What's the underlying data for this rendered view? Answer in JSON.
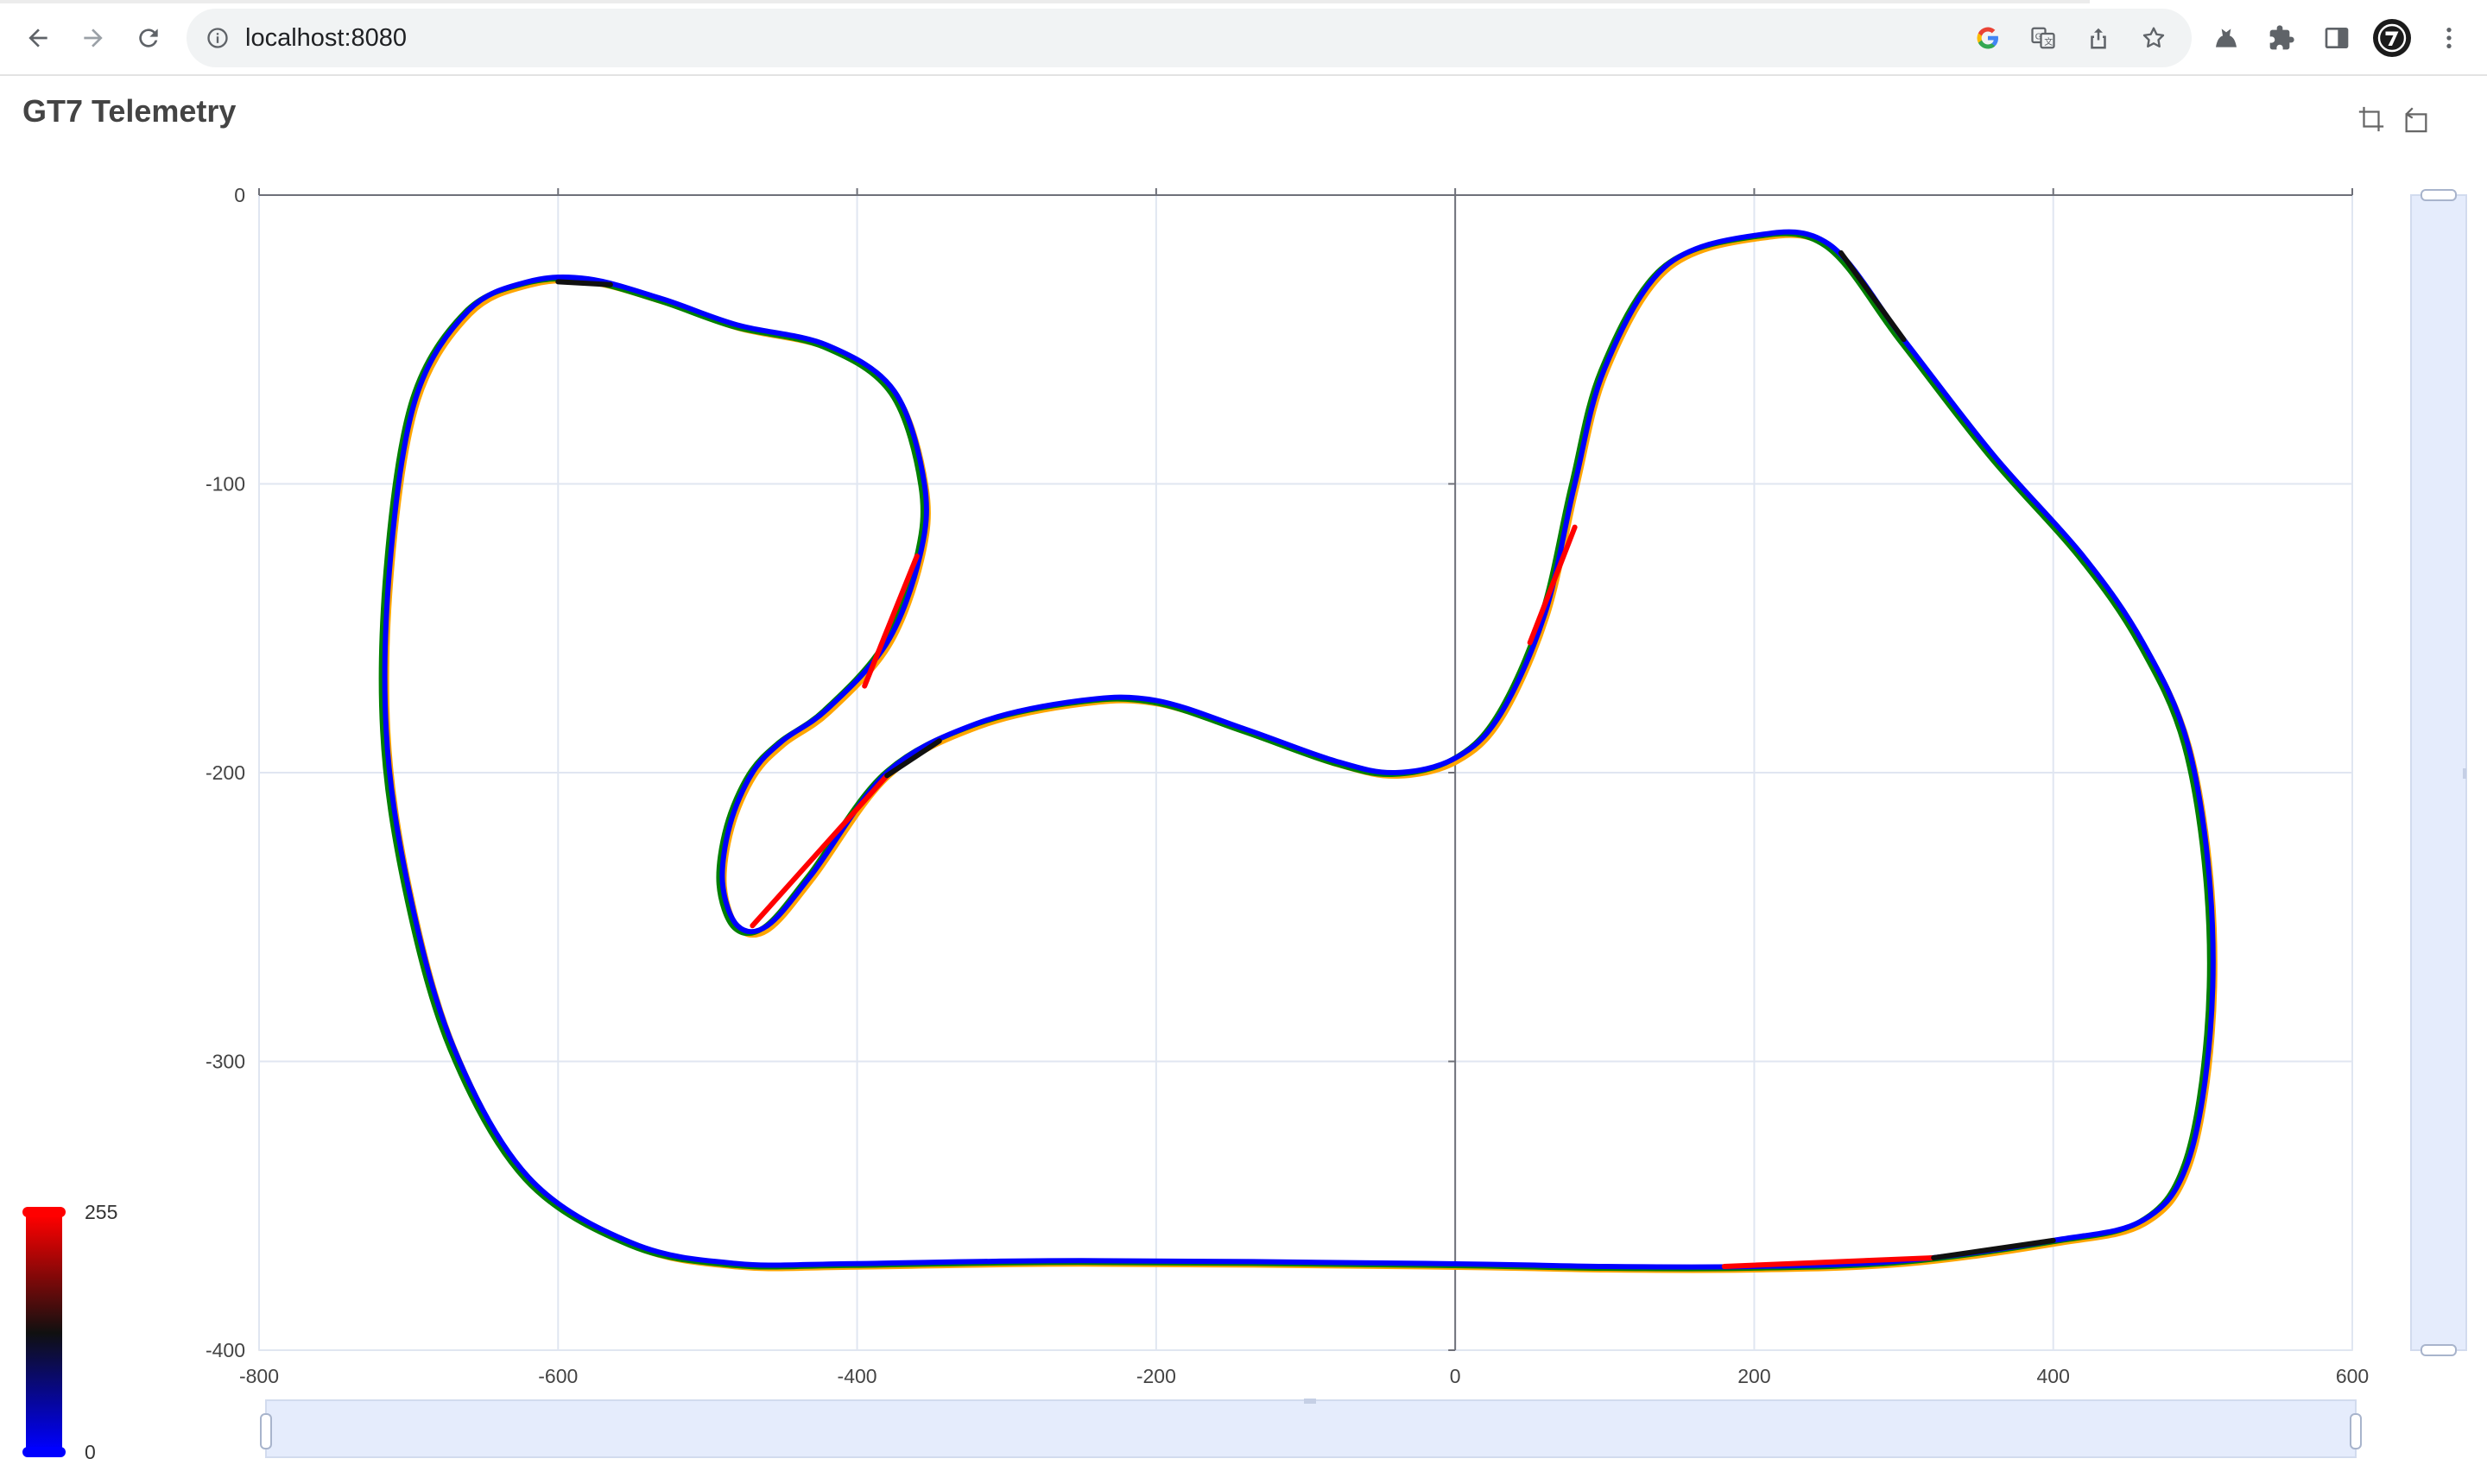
{
  "browser": {
    "url": "localhost:8080",
    "icons": {
      "back": "back-arrow-icon",
      "forward": "forward-arrow-icon",
      "reload": "reload-icon",
      "info": "info-icon",
      "google": "google-icon",
      "translate": "translate-icon",
      "share": "share-icon",
      "bookmark": "star-icon",
      "extension_cat": "cat-extension-icon",
      "extensions": "puzzle-icon",
      "side_panel": "side-panel-icon",
      "profile": "avatar",
      "menu": "kebab-menu-icon"
    }
  },
  "app": {
    "title": "GT7 Telemetry",
    "toolbox": [
      "dataZoom",
      "dataZoomReset"
    ]
  },
  "colorbar": {
    "max_label": "255",
    "min_label": "0",
    "colors": [
      "#0000ff",
      "#101010",
      "#ff0000"
    ]
  },
  "chart_data": {
    "type": "line",
    "title": "",
    "xlabel": "",
    "ylabel": "",
    "xlim": [
      -800,
      600
    ],
    "ylim": [
      -400,
      0
    ],
    "x_ticks": [
      "-800",
      "-600",
      "-400",
      "-200",
      "0",
      "200",
      "400",
      "600"
    ],
    "y_ticks": [
      "0",
      "-100",
      "-200",
      "-300",
      "-400"
    ],
    "grid": true,
    "series_colors": {
      "track_alt_1": "#ffa500",
      "track_alt_2": "#008000",
      "track_main": "#0000ff",
      "braking": "#ff0000",
      "coast": "#101010"
    },
    "track": [
      [
        -10,
        -370
      ],
      [
        -250,
        -369
      ],
      [
        -400,
        -370
      ],
      [
        -480,
        -370
      ],
      [
        -550,
        -363
      ],
      [
        -620,
        -340
      ],
      [
        -670,
        -295
      ],
      [
        -700,
        -240
      ],
      [
        -715,
        -185
      ],
      [
        -712,
        -125
      ],
      [
        -695,
        -70
      ],
      [
        -660,
        -40
      ],
      [
        -620,
        -30
      ],
      [
        -580,
        -29
      ],
      [
        -530,
        -36
      ],
      [
        -480,
        -45
      ],
      [
        -420,
        -52
      ],
      [
        -375,
        -68
      ],
      [
        -355,
        -100
      ],
      [
        -358,
        -125
      ],
      [
        -380,
        -155
      ],
      [
        -420,
        -178
      ],
      [
        -450,
        -189
      ],
      [
        -470,
        -200
      ],
      [
        -485,
        -218
      ],
      [
        -490,
        -238
      ],
      [
        -480,
        -253
      ],
      [
        -460,
        -253
      ],
      [
        -430,
        -235
      ],
      [
        -380,
        -200
      ],
      [
        -320,
        -183
      ],
      [
        -250,
        -175
      ],
      [
        -200,
        -175
      ],
      [
        -140,
        -185
      ],
      [
        -80,
        -196
      ],
      [
        -40,
        -200
      ],
      [
        0,
        -195
      ],
      [
        30,
        -180
      ],
      [
        60,
        -145
      ],
      [
        80,
        -100
      ],
      [
        100,
        -60
      ],
      [
        140,
        -25
      ],
      [
        200,
        -14
      ],
      [
        250,
        -17
      ],
      [
        300,
        -50
      ],
      [
        360,
        -90
      ],
      [
        420,
        -125
      ],
      [
        460,
        -155
      ],
      [
        490,
        -190
      ],
      [
        505,
        -240
      ],
      [
        505,
        -290
      ],
      [
        490,
        -335
      ],
      [
        460,
        -355
      ],
      [
        400,
        -362
      ],
      [
        300,
        -369
      ],
      [
        200,
        -371
      ],
      [
        100,
        -371
      ],
      [
        -10,
        -370
      ]
    ],
    "braking_segments": [
      {
        "from": [
          -395,
          -170
        ],
        "to": [
          -360,
          -125
        ]
      },
      {
        "from": [
          -470,
          -253
        ],
        "to": [
          -380,
          -201
        ]
      },
      {
        "from": [
          50,
          -155
        ],
        "to": [
          80,
          -115
        ]
      },
      {
        "from": [
          180,
          -371
        ],
        "to": [
          320,
          -368
        ]
      }
    ],
    "coast_segments": [
      {
        "from": [
          -600,
          -30
        ],
        "to": [
          -565,
          -31
        ]
      },
      {
        "from": [
          -380,
          -201
        ],
        "to": [
          -345,
          -189
        ]
      },
      {
        "from": [
          258,
          -20
        ],
        "to": [
          300,
          -50
        ]
      },
      {
        "from": [
          320,
          -368
        ],
        "to": [
          400,
          -362
        ]
      }
    ]
  }
}
